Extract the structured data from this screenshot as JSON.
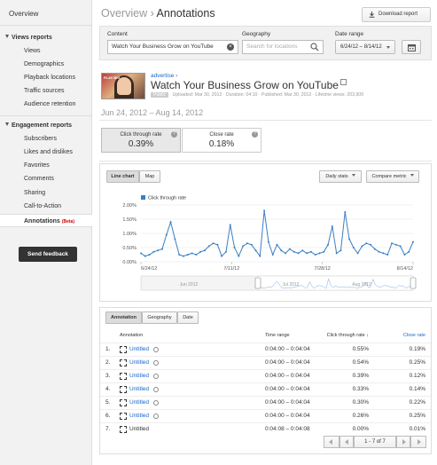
{
  "sidebar": {
    "overview": "Overview",
    "views_section": "Views reports",
    "views_items": [
      "Views",
      "Demographics",
      "Playback locations",
      "Traffic sources",
      "Audience retention"
    ],
    "engagement_section": "Engagement reports",
    "engagement_items": [
      "Subscribers",
      "Likes and dislikes",
      "Favorites",
      "Comments",
      "Sharing",
      "Call-to-Action"
    ],
    "active_item": "Annotations",
    "active_badge": "Beta",
    "feedback": "Send feedback"
  },
  "header": {
    "breadcrumb_parent": "Overview",
    "separator": "›",
    "title": "Annotations",
    "download": "Download report"
  },
  "filters": {
    "content_label": "Content",
    "content_value": "Watch Your Business Grow on YouTube",
    "geo_label": "Geography",
    "geo_placeholder": "Search for locations",
    "date_label": "Date range",
    "date_value": "6/24/12 – 8/14/12"
  },
  "video": {
    "thumb_text": "PLAY BIG",
    "channel": "advertise ›",
    "title": "Watch Your Business Grow on YouTube",
    "tag": "Public",
    "uploaded": "Uploaded: Mar 30, 2012",
    "duration": "Duration: 04:10",
    "published": "Published: Mar 30, 2012",
    "lifetime": "Lifetime views: 203,909",
    "date_range": "Jun 24, 2012 – Aug 14, 2012"
  },
  "metrics": [
    {
      "label": "Click through rate",
      "value": "0.39%"
    },
    {
      "label": "Close rate",
      "value": "0.18%"
    }
  ],
  "chart_controls": {
    "line_chart": "Line chart",
    "map": "Map",
    "daily_stats": "Daily stats",
    "compare": "Compare metric"
  },
  "chart_data": {
    "type": "line",
    "series": [
      {
        "name": "Click through rate",
        "color": "#3a7fc4",
        "values": [
          0.3,
          0.2,
          0.25,
          0.35,
          0.4,
          0.45,
          0.95,
          1.4,
          0.8,
          0.25,
          0.2,
          0.25,
          0.3,
          0.25,
          0.35,
          0.4,
          0.55,
          0.65,
          0.6,
          0.2,
          0.35,
          1.3,
          0.5,
          0.2,
          0.55,
          0.65,
          0.6,
          0.4,
          0.2,
          1.8,
          0.7,
          0.25,
          0.6,
          0.4,
          0.3,
          0.45,
          0.35,
          0.3,
          0.4,
          0.3,
          0.35,
          0.25,
          0.3,
          0.35,
          0.6,
          1.25,
          0.3,
          0.4,
          1.75,
          0.8,
          0.5,
          0.3,
          0.55,
          0.65,
          0.6,
          0.45,
          0.35,
          0.3,
          0.25,
          0.65,
          0.6,
          0.55,
          0.25,
          0.35,
          0.7
        ]
      }
    ],
    "x_tick_labels": [
      "6/24/12",
      "7/11/12",
      "7/28/12",
      "8/14/12"
    ],
    "yticks": [
      "2.00%",
      "1.50%",
      "1.00%",
      "0.50%",
      "0.00%"
    ],
    "ylim": [
      0,
      2.0
    ],
    "grid": true,
    "legend": "top-left",
    "timeline_labels": [
      "Jun 2012",
      "Jul 2012",
      "Aug 2012"
    ]
  },
  "table": {
    "tabs": [
      "Annotation",
      "Geography",
      "Date"
    ],
    "headers": {
      "annotation": "Annotation",
      "time": "Time range",
      "ctr": "Click through rate",
      "close": "Close rate"
    },
    "rows": [
      {
        "num": "1.",
        "name": "Untitled",
        "time": "0:04:00 – 0:04:04",
        "ctr": "0.55%",
        "close": "0.19%",
        "link": true
      },
      {
        "num": "2.",
        "name": "Untitled",
        "time": "0:04:00 – 0:04:04",
        "ctr": "0.54%",
        "close": "0.25%",
        "link": true
      },
      {
        "num": "3.",
        "name": "Untitled",
        "time": "0:04:00 – 0:04:04",
        "ctr": "0.39%",
        "close": "0.12%",
        "link": true
      },
      {
        "num": "4.",
        "name": "Untitled",
        "time": "0:04:00 – 0:04:04",
        "ctr": "0.33%",
        "close": "0.14%",
        "link": true
      },
      {
        "num": "5.",
        "name": "Untitled",
        "time": "0:04:00 – 0:04:04",
        "ctr": "0.30%",
        "close": "0.22%",
        "link": true
      },
      {
        "num": "6.",
        "name": "Untitled",
        "time": "0:04:00 – 0:04:04",
        "ctr": "0.26%",
        "close": "0.25%",
        "link": true
      },
      {
        "num": "7.",
        "name": "Untitled",
        "time": "0:04:08 – 0:04:08",
        "ctr": "0.00%",
        "close": "0.01%",
        "link": false
      }
    ],
    "pager": "1 - 7 of 7"
  }
}
